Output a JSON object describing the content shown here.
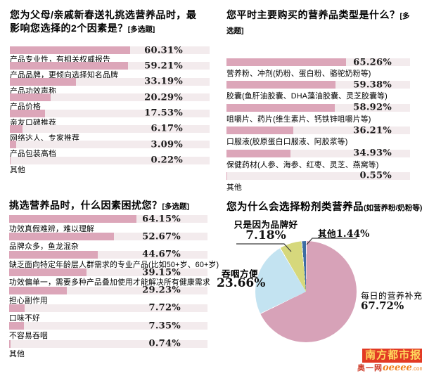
{
  "chart_data": [
    {
      "type": "bar",
      "title": "您为父母/亲戚新春送礼挑选营养品时，最\n影响您选择的2个因素是？",
      "tag": "[多选题]",
      "categories": [
        "产品专业性，有相关权威报告",
        "产品品牌，更倾向选择知名品牌",
        "产品功效声称",
        "产品价格",
        "亲友口碑推荐",
        "网络达人、专家推荐",
        "产品包装高档",
        "其他"
      ],
      "values": [
        60.31,
        59.21,
        33.19,
        20.29,
        17.53,
        6.17,
        3.09,
        0.22
      ],
      "xlim": [
        0,
        100
      ],
      "orientation": "horizontal",
      "value_suffix": "%"
    },
    {
      "type": "bar",
      "title": "您平时主要购买的营养品类型是什么？",
      "tag": "[多选题]",
      "categories": [
        "营养粉、冲剂(奶粉、蛋白粉、骆驼奶粉等)",
        "胶囊(鱼肝油胶囊、DHA藻油胶囊、灵芝胶囊等)",
        "咀嚼片、药片(维生素片、钙铁锌咀嚼片等)",
        "口服液(胶原蛋白口服液、阿胶浆等)",
        "保健药材(人参、海参、红枣、灵芝、燕窝等)",
        "其他"
      ],
      "values": [
        65.26,
        59.38,
        58.92,
        36.21,
        34.93,
        0.55
      ],
      "xlim": [
        0,
        100
      ],
      "orientation": "horizontal",
      "value_suffix": "%"
    },
    {
      "type": "bar",
      "title": "挑选营养品时，什么因素困扰您？",
      "tag": "[多选题]",
      "categories": [
        "功效真假难辨，难以理解",
        "品牌众多，鱼龙混杂",
        "缺乏面向特定年龄层人群需求的专业产品(比如50+岁、60+岁)",
        "功效偏单一，需要多种产品叠加使用才能解决所有健康需求",
        "担心副作用",
        "口味不好",
        "不容易吞咽",
        "其他"
      ],
      "values": [
        64.15,
        52.67,
        44.67,
        39.15,
        29.23,
        7.72,
        7.35,
        0.74
      ],
      "xlim": [
        0,
        100
      ],
      "orientation": "horizontal",
      "value_suffix": "%"
    },
    {
      "type": "pie",
      "title": "您为什么会选择粉剂类营养品",
      "subtitle": "(如营养粉/奶粉等)",
      "labels": [
        "每日的营养补充",
        "吞咽方便",
        "只是因为品牌好",
        "其他"
      ],
      "values": [
        67.72,
        23.66,
        7.18,
        1.44
      ],
      "colors": [
        "#d7a2b8",
        "#c3e3f1",
        "#d6d87c",
        "#3e6da3"
      ],
      "start_angle_deg": 0,
      "direction": "clockwise",
      "value_suffix": "%"
    }
  ],
  "pie_value_labels": [
    "67.72%",
    "23.66%",
    "7.18%",
    "1.44%"
  ],
  "colors": {
    "bar": "#dca6b9",
    "strip": "#f3ebed",
    "accent_red": "#e23a24",
    "logo_yellow": "#ffd95e",
    "site_red": "#cf3d2a",
    "site_orange": "#ef7f1a"
  },
  "footer": {
    "brand": "南方都市报",
    "site_prefix": "奥一网",
    "site_name": "oeeee",
    "site_tld": ".com"
  }
}
